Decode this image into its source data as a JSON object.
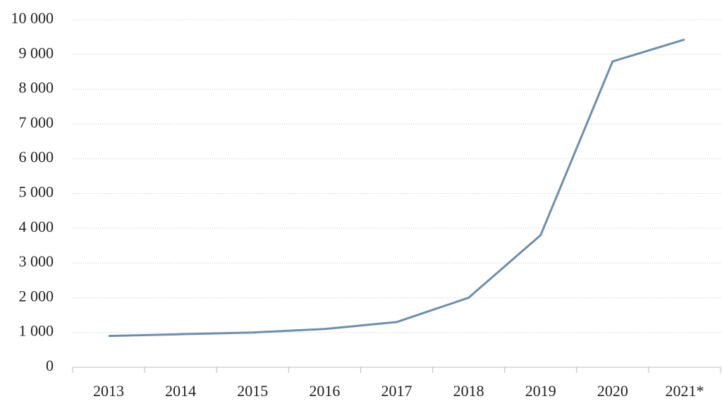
{
  "chart_data": {
    "type": "line",
    "categories": [
      "2013",
      "2014",
      "2015",
      "2016",
      "2017",
      "2018",
      "2019",
      "2020",
      "2021*"
    ],
    "series": [
      {
        "color": "#6b8fb0",
        "values": [
          900,
          950,
          1000,
          1100,
          1300,
          2000,
          3800,
          8800,
          9430
        ]
      }
    ],
    "ylim": [
      0,
      10000
    ],
    "yticks": [
      0,
      {
        "value": 1000,
        "label": "1 000"
      },
      {
        "value": 2000,
        "label": "2 000"
      },
      {
        "value": 3000,
        "label": "3 000"
      },
      {
        "value": 4000,
        "label": "4 000"
      },
      {
        "value": 5000,
        "label": "5 000"
      },
      {
        "value": 6000,
        "label": "6 000"
      },
      {
        "value": 7000,
        "label": "7 000"
      },
      {
        "value": 8000,
        "label": "8 000"
      },
      {
        "value": 9000,
        "label": "9 000"
      },
      {
        "value": 10000,
        "label": "10 000"
      }
    ],
    "grid": true
  }
}
